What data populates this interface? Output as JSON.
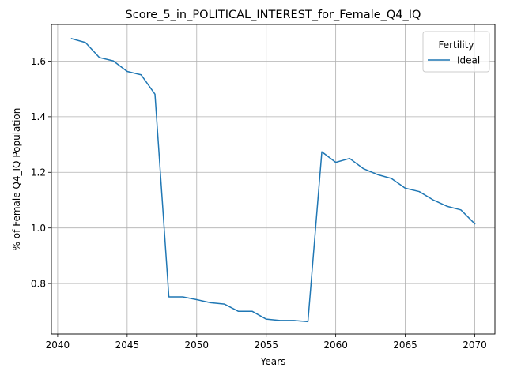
{
  "chart_data": {
    "type": "line",
    "title": "Score_5_in_POLITICAL_INTEREST_for_Female_Q4_IQ",
    "xlabel": "Years",
    "ylabel": "% of Female Q4_IQ Population",
    "xlim": [
      2039.55,
      2071.45
    ],
    "ylim": [
      0.6185,
      1.732
    ],
    "xticks": [
      2040,
      2045,
      2050,
      2055,
      2060,
      2065,
      2070
    ],
    "yticks": [
      0.8,
      1.0,
      1.2,
      1.4,
      1.6
    ],
    "xtick_labels": [
      "2040",
      "2045",
      "2050",
      "2055",
      "2060",
      "2065",
      "2070"
    ],
    "ytick_labels": [
      "0.8",
      "1.0",
      "1.2",
      "1.4",
      "1.6"
    ],
    "grid": true,
    "legend": {
      "title": "Fertility",
      "placement": "top-right"
    },
    "series": [
      {
        "name": "Ideal",
        "color": "#1f77b4",
        "x": [
          2041,
          2042,
          2043,
          2044,
          2045,
          2046,
          2047,
          2048,
          2049,
          2050,
          2051,
          2052,
          2053,
          2054,
          2055,
          2056,
          2057,
          2058,
          2059,
          2060,
          2061,
          2062,
          2063,
          2064,
          2065,
          2066,
          2067,
          2068,
          2069,
          2070
        ],
        "y": [
          1.681,
          1.667,
          1.613,
          1.601,
          1.563,
          1.551,
          1.481,
          0.752,
          0.752,
          0.742,
          0.731,
          0.726,
          0.7,
          0.7,
          0.672,
          0.667,
          0.667,
          0.663,
          1.274,
          1.236,
          1.25,
          1.213,
          1.192,
          1.178,
          1.143,
          1.131,
          1.101,
          1.078,
          1.065,
          1.015
        ]
      }
    ]
  }
}
